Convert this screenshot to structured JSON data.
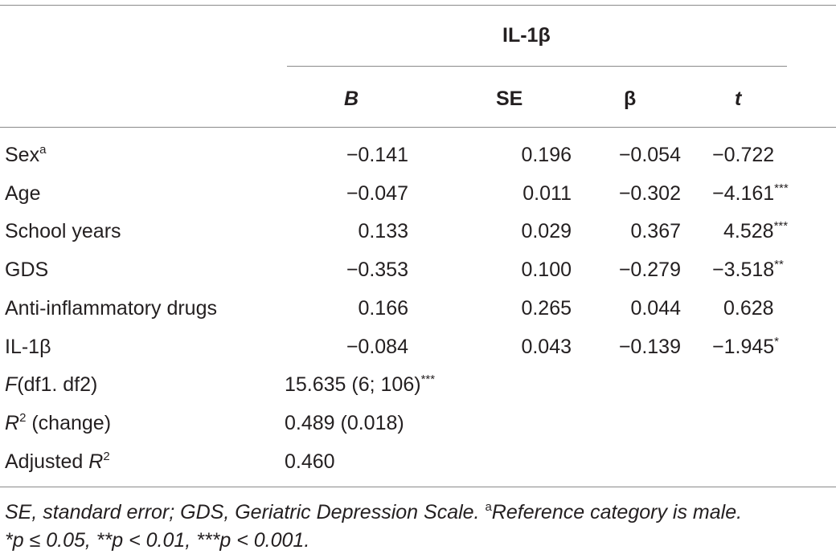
{
  "table": {
    "group_header": "IL-1β",
    "columns": [
      {
        "label": "B",
        "italic": true
      },
      {
        "label": "SE",
        "italic": false
      },
      {
        "label": "β",
        "italic": false
      },
      {
        "label": "t",
        "italic": true
      }
    ],
    "rows": [
      {
        "label": "Sex",
        "label_sup": "a",
        "B": "−0.141",
        "SE": "0.196",
        "beta": "−0.054",
        "t": "−0.722",
        "t_sig": ""
      },
      {
        "label": "Age",
        "label_sup": "",
        "B": "−0.047",
        "SE": "0.011",
        "beta": "−0.302",
        "t": "−4.161",
        "t_sig": "***"
      },
      {
        "label": "School years",
        "label_sup": "",
        "B": "0.133",
        "SE": "0.029",
        "beta": "0.367",
        "t": "4.528",
        "t_sig": "***"
      },
      {
        "label": "GDS",
        "label_sup": "",
        "B": "−0.353",
        "SE": "0.100",
        "beta": "−0.279",
        "t": "−3.518",
        "t_sig": "**"
      },
      {
        "label": "Anti-inflammatory drugs",
        "label_sup": "",
        "B": "0.166",
        "SE": "0.265",
        "beta": "0.044",
        "t": "0.628",
        "t_sig": ""
      },
      {
        "label": "IL-1β",
        "label_sup": "",
        "B": "−0.084",
        "SE": "0.043",
        "beta": "−0.139",
        "t": "−1.945",
        "t_sig": "*"
      }
    ],
    "stats": {
      "f_label_italic": "F",
      "f_label_rest": "(df1. df2)",
      "f_value": "15.635 (6; 106)",
      "f_sig": "***",
      "r2_label_italic": "R",
      "r2_label_sup": "2",
      "r2_label_rest": " (change)",
      "r2_value": "0.489 (0.018)",
      "adj_label_prefix": "Adjusted ",
      "adj_label_italic": "R",
      "adj_label_sup": "2",
      "adj_value": "0.460"
    }
  },
  "footnote": {
    "line1_main": "SE, standard error; GDS, Geriatric Depression Scale. ",
    "line1_sup": "a",
    "line1_rest": "Reference category is male.",
    "line2": "*p ≤ 0.05, **p < 0.01, ***p < 0.001."
  }
}
